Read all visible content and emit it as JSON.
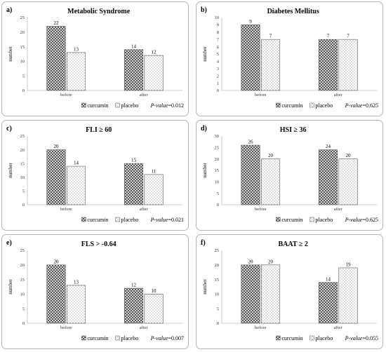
{
  "chart_data": [
    {
      "type": "bar",
      "label": "a)",
      "title": "Metabolic Syndrome",
      "ylabel": "number",
      "ylim": [
        0,
        25
      ],
      "yticks": [
        0,
        5,
        10,
        15,
        20,
        25
      ],
      "categories": [
        "before",
        "after"
      ],
      "series": [
        {
          "name": "curcumin",
          "values": [
            22,
            14
          ]
        },
        {
          "name": "placebo",
          "values": [
            13,
            12
          ]
        }
      ],
      "legend": "bottom",
      "p_label": "P-value",
      "p_value": "=0.012"
    },
    {
      "type": "bar",
      "label": "b)",
      "title": "Diabetes Mellitus",
      "ylabel": "number",
      "ylim": [
        0,
        10
      ],
      "yticks": [
        0,
        1,
        2,
        3,
        4,
        5,
        6,
        7,
        8,
        9,
        10
      ],
      "categories": [
        "before",
        "after"
      ],
      "series": [
        {
          "name": "curcumin",
          "values": [
            9,
            7
          ]
        },
        {
          "name": "placebo",
          "values": [
            7,
            7
          ]
        }
      ],
      "legend": "bottom",
      "p_label": "P-value",
      "p_value": "=0.625"
    },
    {
      "type": "bar",
      "label": "c)",
      "title": "FLI ≥ 60",
      "ylabel": "number",
      "ylim": [
        0,
        25
      ],
      "yticks": [
        0,
        5,
        10,
        15,
        20,
        25
      ],
      "categories": [
        "before",
        "after"
      ],
      "series": [
        {
          "name": "curcumin",
          "values": [
            20,
            15
          ]
        },
        {
          "name": "placebo",
          "values": [
            14,
            11
          ]
        }
      ],
      "legend": "bottom",
      "p_label": "P-value",
      "p_value": "=0.021"
    },
    {
      "type": "bar",
      "label": "d)",
      "title": "HSI ≥ 36",
      "ylabel": "number",
      "ylim": [
        0,
        30
      ],
      "yticks": [
        0,
        5,
        10,
        15,
        20,
        25,
        30
      ],
      "categories": [
        "before",
        "after"
      ],
      "series": [
        {
          "name": "curcumin",
          "values": [
            26,
            24
          ]
        },
        {
          "name": "placebo",
          "values": [
            20,
            20
          ]
        }
      ],
      "legend": "bottom",
      "p_label": "P-value",
      "p_value": "=0.625"
    },
    {
      "type": "bar",
      "label": "e)",
      "title": "FLS > -0.64",
      "ylabel": "number",
      "ylim": [
        0,
        25
      ],
      "yticks": [
        0,
        5,
        10,
        15,
        20,
        25
      ],
      "categories": [
        "before",
        "after"
      ],
      "series": [
        {
          "name": "curcumin",
          "values": [
            20,
            12
          ]
        },
        {
          "name": "placebo",
          "values": [
            13,
            10
          ]
        }
      ],
      "legend": "bottom",
      "p_label": "P-value",
      "p_value": "=0.007"
    },
    {
      "type": "bar",
      "label": "f)",
      "title": "BAAT ≥ 2",
      "ylabel": "number",
      "ylim": [
        0,
        25
      ],
      "yticks": [
        0,
        5,
        10,
        15,
        20,
        25
      ],
      "categories": [
        "before",
        "after"
      ],
      "series": [
        {
          "name": "curcumin",
          "values": [
            20,
            14
          ]
        },
        {
          "name": "placebo",
          "values": [
            20,
            19
          ]
        }
      ],
      "legend": "bottom",
      "p_label": "P-value",
      "p_value": "=0.055"
    }
  ]
}
